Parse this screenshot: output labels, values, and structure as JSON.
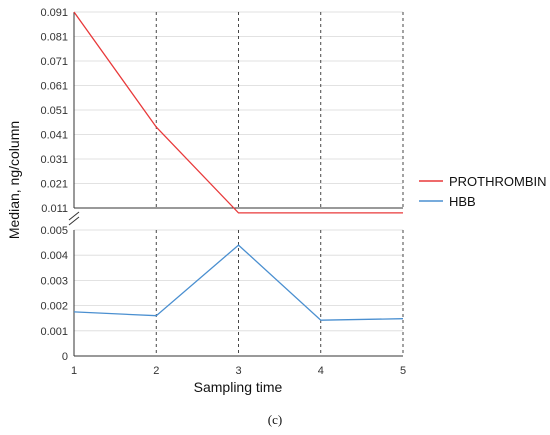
{
  "chart_data": {
    "type": "line",
    "caption": "(c)",
    "xlabel": "Sampling time",
    "ylabel": "Median, ng/column",
    "x": [
      1,
      2,
      3,
      4,
      5
    ],
    "xlim": [
      1,
      5
    ],
    "legend_position": "right",
    "grid": "horizontal gridlines; dashed vertical lines at each sampling time",
    "broken_y_axis": true,
    "upper_panel": {
      "ylim": [
        0.011,
        0.091
      ],
      "yticks": [
        "0.091",
        "0.081",
        "0.071",
        "0.061",
        "0.051",
        "0.041",
        "0.031",
        "0.021",
        "0.011"
      ]
    },
    "lower_panel": {
      "ylim": [
        0,
        0.005
      ],
      "yticks": [
        "0.005",
        "0.004",
        "0.003",
        "0.002",
        "0.001",
        "0"
      ]
    },
    "xticks": [
      "1",
      "2",
      "3",
      "4",
      "5"
    ],
    "series": [
      {
        "name": "PROTHROMBIN",
        "color": "#e8393a",
        "panel": "upper",
        "values": [
          0.091,
          0.044,
          0.009,
          0.009,
          0.009
        ]
      },
      {
        "name": "HBB",
        "color": "#4a8fd0",
        "panel": "lower",
        "values": [
          0.00175,
          0.0016,
          0.0044,
          0.00142,
          0.00148
        ]
      }
    ]
  }
}
